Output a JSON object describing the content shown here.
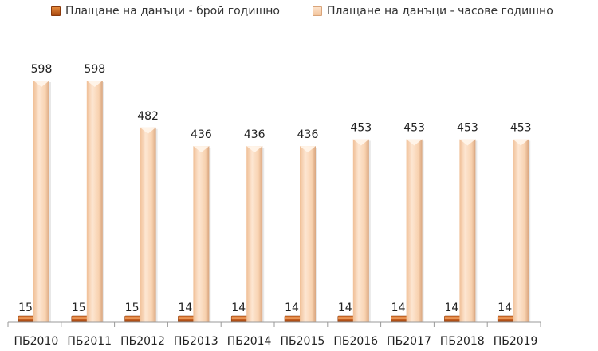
{
  "legend": {
    "series1": "Плащане на данъци - брой годишно",
    "series2": "Плащане на данъци - часове годишно"
  },
  "colors": {
    "series1": "#c0581a",
    "series2": "#f8d2b0"
  },
  "chart_data": {
    "type": "bar",
    "title": "",
    "xlabel": "",
    "ylabel": "",
    "ylim": [
      0,
      620
    ],
    "grid": false,
    "legend_position": "top",
    "categories": [
      "ПБ2010",
      "ПБ2011",
      "ПБ2012",
      "ПБ2013",
      "ПБ2014",
      "ПБ2015",
      "ПБ2016",
      "ПБ2017",
      "ПБ2018",
      "ПБ2019"
    ],
    "series": [
      {
        "name": "Плащане на данъци - брой годишно",
        "values": [
          15,
          15,
          15,
          14,
          14,
          14,
          14,
          14,
          14,
          14
        ]
      },
      {
        "name": "Плащане на данъци - часове годишно",
        "values": [
          598,
          598,
          482,
          436,
          436,
          436,
          453,
          453,
          453,
          453
        ]
      }
    ]
  }
}
